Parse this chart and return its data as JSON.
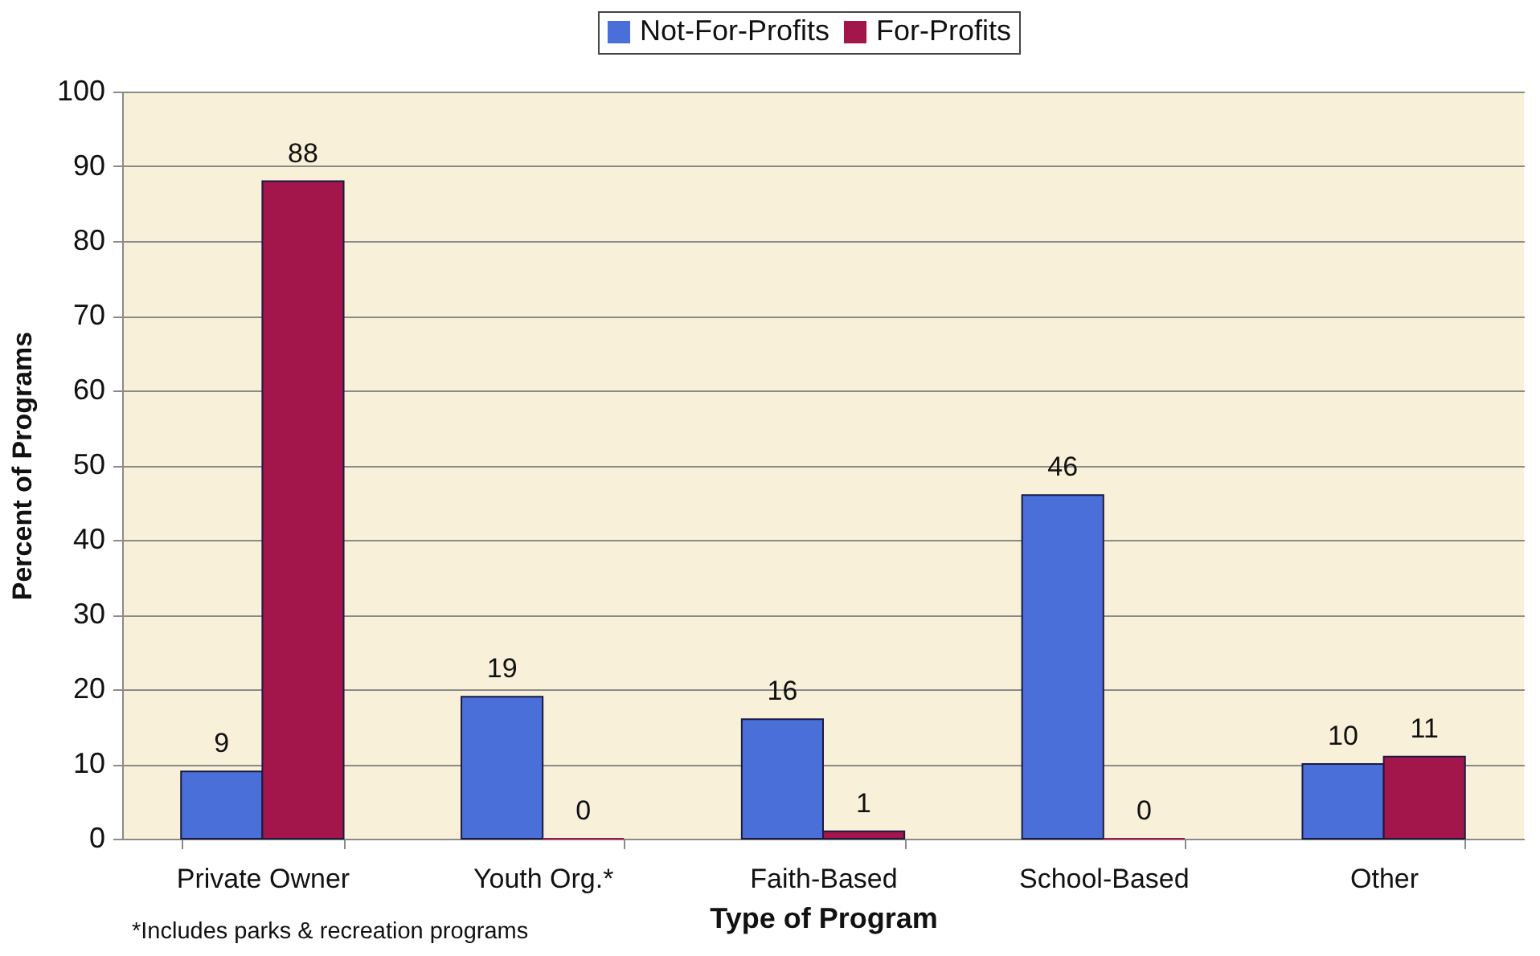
{
  "chart_data": {
    "type": "bar",
    "categories": [
      "Private Owner",
      "Youth Org.*",
      "Faith-Based",
      "School-Based",
      "Other"
    ],
    "series": [
      {
        "name": "Not-For-Profits",
        "color": "#4a6fd8",
        "values": [
          9,
          19,
          16,
          46,
          10
        ]
      },
      {
        "name": "For-Profits",
        "color": "#a3164c",
        "values": [
          88,
          0,
          1,
          0,
          11
        ]
      }
    ],
    "xlabel": "Type of Program",
    "ylabel": "Percent of Programs",
    "ylim": [
      0,
      100
    ],
    "yticks": [
      0,
      10,
      20,
      30,
      40,
      50,
      60,
      70,
      80,
      90,
      100
    ],
    "grid": "y",
    "legend": "top",
    "data_labels": true,
    "annotations": [
      "*Includes parks & recreation programs"
    ]
  }
}
